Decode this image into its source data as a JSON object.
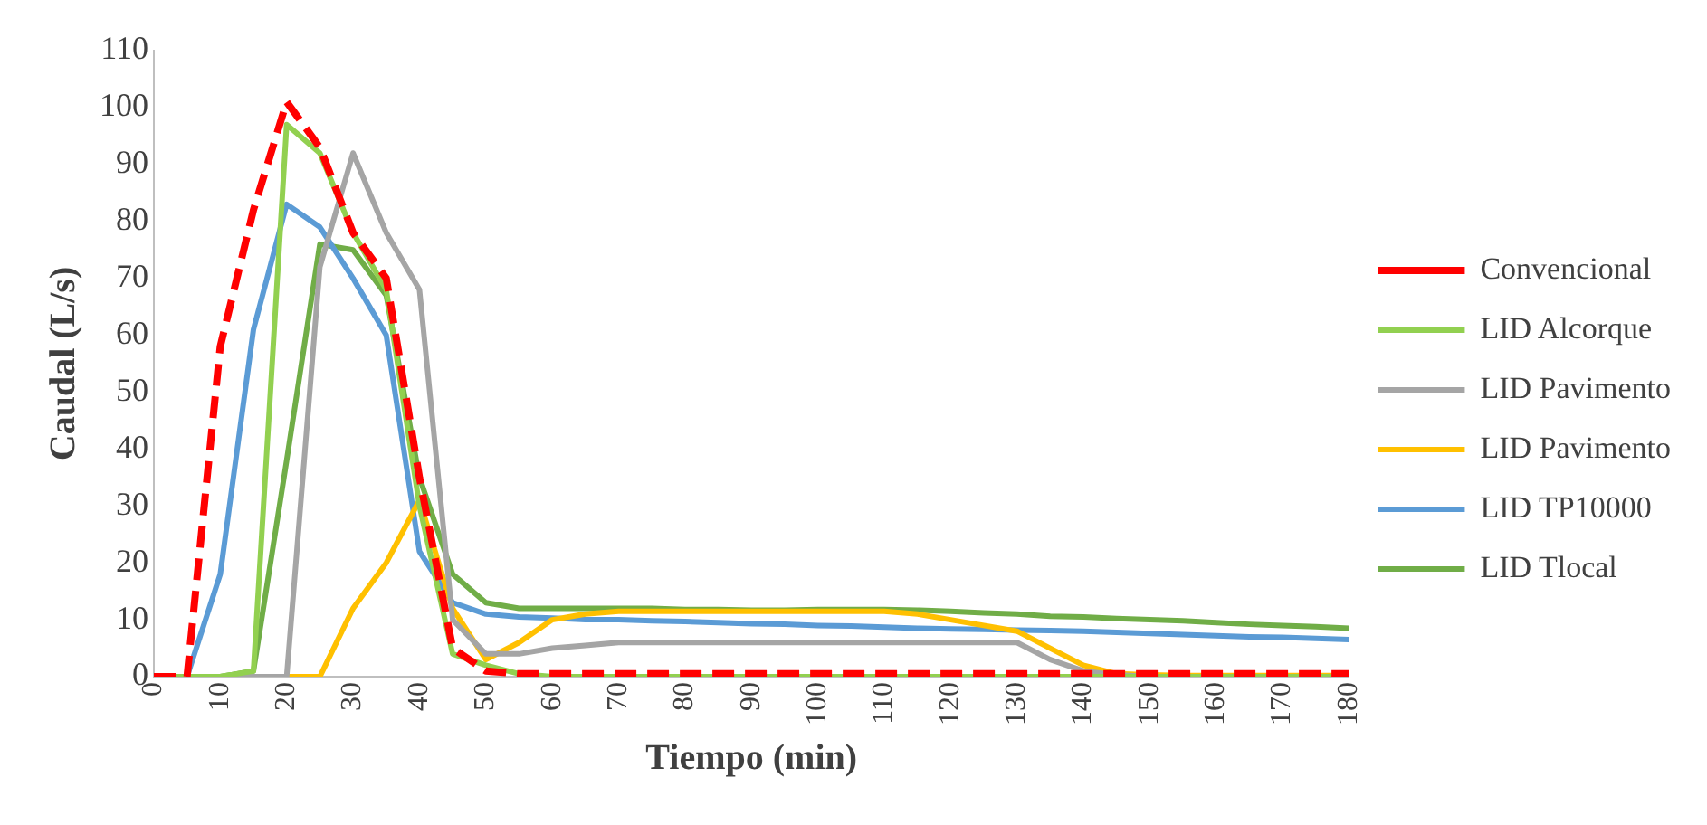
{
  "chart_data": {
    "type": "line",
    "xlabel": "Tiempo (min)",
    "ylabel": "Caudal (L/s)",
    "x": [
      0,
      5,
      10,
      15,
      20,
      25,
      30,
      35,
      40,
      45,
      50,
      55,
      60,
      65,
      70,
      75,
      80,
      85,
      90,
      95,
      100,
      105,
      110,
      115,
      120,
      125,
      130,
      135,
      140,
      145,
      150,
      155,
      160,
      165,
      170,
      175,
      180
    ],
    "xlim": [
      0,
      180
    ],
    "xticks": [
      0,
      10,
      20,
      30,
      40,
      50,
      60,
      70,
      80,
      90,
      100,
      110,
      120,
      130,
      140,
      150,
      160,
      170,
      180
    ],
    "ylim": [
      0,
      110
    ],
    "yticks": [
      0,
      10,
      20,
      30,
      40,
      50,
      60,
      70,
      80,
      90,
      100,
      110
    ],
    "grid": false,
    "legend": "right",
    "marker": "none",
    "series": [
      {
        "name": "Convencional",
        "color": "#ff0000",
        "line_style": "dashed",
        "values": [
          0,
          0,
          58,
          82,
          101,
          93,
          78,
          70,
          35,
          5,
          1,
          0.5,
          0.5,
          0.5,
          0.5,
          0.5,
          0.5,
          0.5,
          0.5,
          0.5,
          0.5,
          0.5,
          0.5,
          0.5,
          0.5,
          0.5,
          0.5,
          0.5,
          0.5,
          0.5,
          0.5,
          0.5,
          0.5,
          0.5,
          0.5,
          0.5,
          0.5
        ]
      },
      {
        "name": "LID Alcorque",
        "color": "#92d050",
        "line_style": "solid",
        "values": [
          0,
          0,
          0,
          1,
          97,
          92,
          78,
          68,
          30,
          4,
          2,
          0.5,
          0,
          0,
          0,
          0,
          0,
          0,
          0,
          0,
          0,
          0,
          0,
          0,
          0,
          0,
          0,
          0,
          0,
          0,
          0,
          0,
          0,
          0,
          0,
          0,
          0
        ]
      },
      {
        "name": "LID Pavimento",
        "color": "#a5a5a5",
        "line_style": "solid",
        "values": [
          0,
          0,
          0,
          0,
          0,
          72,
          92,
          78,
          68,
          10,
          4,
          4,
          5,
          5.5,
          6,
          6,
          6,
          6,
          6,
          6,
          6,
          6,
          6,
          6,
          6,
          6,
          6,
          3,
          1,
          0.3,
          0,
          0,
          0,
          0,
          0,
          0,
          0
        ]
      },
      {
        "name": "LID Pavimento",
        "color": "#ffc000",
        "line_style": "solid",
        "values": [
          null,
          null,
          null,
          0,
          0,
          0,
          12,
          20,
          31,
          12,
          3,
          6,
          10,
          11,
          11.5,
          11.5,
          11.5,
          11.5,
          11.5,
          11.5,
          11.5,
          11.5,
          11.5,
          11,
          10,
          9,
          8,
          5,
          2,
          0.5,
          0.3,
          0.2,
          0.2,
          0.2,
          0.2,
          0.2,
          0.2
        ]
      },
      {
        "name": "LID TP10000",
        "color": "#5b9bd5",
        "line_style": "solid",
        "values": [
          0,
          0,
          18,
          61,
          83,
          79,
          70,
          60,
          22,
          13,
          11,
          10.5,
          10.3,
          10,
          10,
          9.8,
          9.7,
          9.5,
          9.3,
          9.2,
          9,
          8.9,
          8.7,
          8.5,
          8.4,
          8.3,
          8.2,
          8.1,
          8,
          7.8,
          7.6,
          7.4,
          7.2,
          7,
          6.9,
          6.7,
          6.5
        ]
      },
      {
        "name": "LID Tlocal",
        "color": "#70ad47",
        "line_style": "solid",
        "values": [
          0,
          0,
          0,
          1,
          38,
          76,
          75,
          67,
          35,
          18,
          13,
          12,
          12,
          12,
          12,
          12,
          11.8,
          11.8,
          11.7,
          11.7,
          11.8,
          11.8,
          11.8,
          11.7,
          11.5,
          11.2,
          11,
          10.6,
          10.5,
          10.2,
          10,
          9.8,
          9.5,
          9.2,
          9,
          8.8,
          8.5
        ]
      }
    ]
  }
}
